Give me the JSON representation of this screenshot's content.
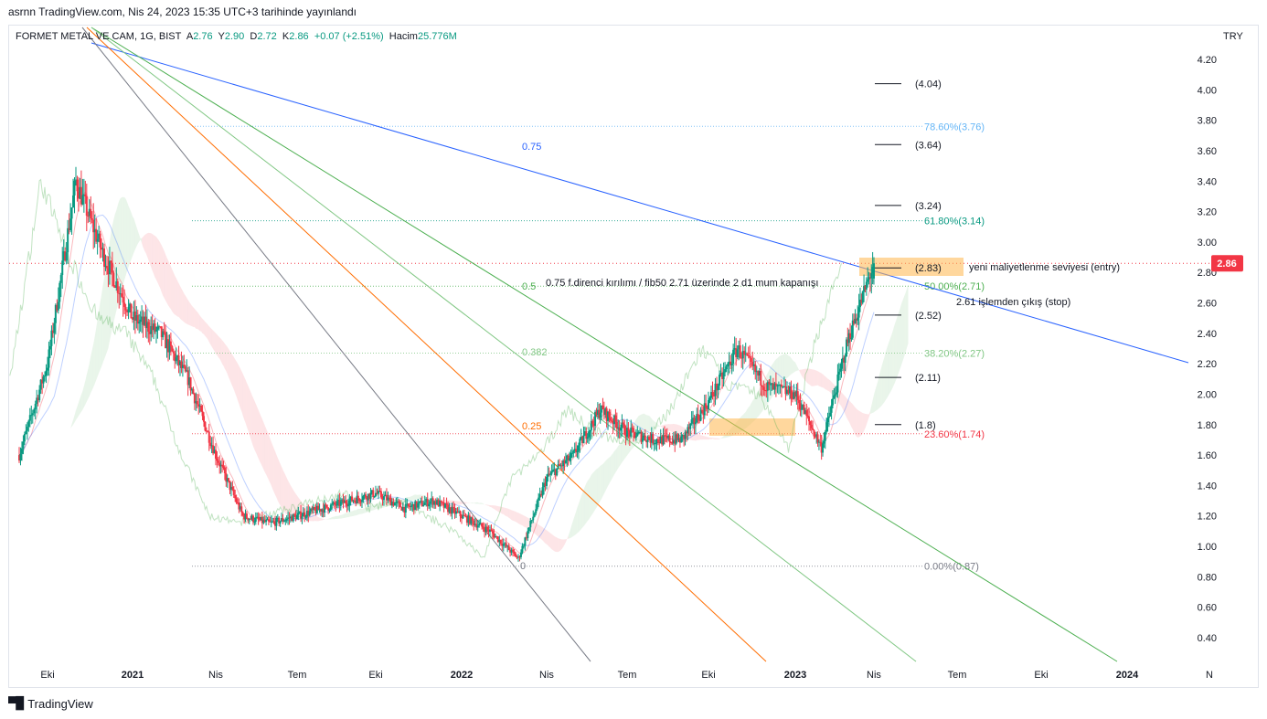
{
  "header": {
    "published": "asrnn TradingView.com, Nis 24, 2023 15:35 UTC+3 tarihinde yayınlandı"
  },
  "legend": {
    "symbol": "FORMET METAL VE CAM, 1G, BIST",
    "open_label": "A",
    "open": "2.76",
    "high_label": "Y",
    "high": "2.90",
    "low_label": "D",
    "low": "2.72",
    "close_label": "K",
    "close": "2.86",
    "change": "+0.07 (+2.51%)",
    "volume_label": "Hacim",
    "volume": "25.776M"
  },
  "currency": "TRY",
  "footer": {
    "brand": "TradingView"
  },
  "chart_data": {
    "type": "line",
    "title": "FORMET METAL VE CAM, 1G, BIST",
    "ylim": [
      0.3,
      4.3
    ],
    "y_ticks": [
      "4.20",
      "4.00",
      "3.80",
      "3.60",
      "3.40",
      "3.20",
      "3.00",
      "2.80",
      "2.60",
      "2.40",
      "2.20",
      "2.00",
      "1.80",
      "1.60",
      "1.40",
      "1.20",
      "1.00",
      "0.80",
      "0.60",
      "0.40"
    ],
    "x_ticks": [
      "Eki",
      "2021",
      "Nis",
      "Tem",
      "Eki",
      "2022",
      "Nis",
      "Tem",
      "Eki",
      "2023",
      "Nis",
      "Tem",
      "Eki",
      "2024",
      "N"
    ],
    "last_price": "2.86",
    "price_colors": {
      "up": "#089981",
      "down": "#f23645"
    },
    "series": [
      {
        "name": "",
        "x": [
          "2020-09",
          "2020-10",
          "2020-11",
          "2020-12",
          "2021-01",
          "2021-02",
          "2021-03",
          "2021-04",
          "2021-05",
          "2021-06",
          "2021-07",
          "2021-08",
          "2021-09",
          "2021-10",
          "2021-11",
          "2021-12",
          "2022-01",
          "2022-02",
          "2022-03",
          "2022-04",
          "2022-05",
          "2022-06",
          "2022-07",
          "2022-08",
          "2022-09",
          "2022-10",
          "2022-11",
          "2022-12",
          "2023-01",
          "2023-02",
          "2023-03",
          "2023-04"
        ],
        "values": [
          1.6,
          2.2,
          3.4,
          2.9,
          2.5,
          2.4,
          2.1,
          1.6,
          1.2,
          1.15,
          1.2,
          1.25,
          1.3,
          1.35,
          1.25,
          1.3,
          1.2,
          1.1,
          0.92,
          1.45,
          1.6,
          1.9,
          1.75,
          1.7,
          1.7,
          1.95,
          2.3,
          2.05,
          2.0,
          1.65,
          2.35,
          2.86
        ]
      }
    ],
    "fibonacci_retracement": [
      {
        "label": "78.60%(3.76)",
        "price": 3.76,
        "color": "#64b5f6"
      },
      {
        "label": "61.80%(3.14)",
        "price": 3.14,
        "color": "#089981"
      },
      {
        "label": "50.00%(2.71)",
        "price": 2.71,
        "color": "#4caf50"
      },
      {
        "label": "38.20%(2.27)",
        "price": 2.27,
        "color": "#81c784"
      },
      {
        "label": "23.60%(1.74)",
        "price": 1.74,
        "color": "#f23645"
      },
      {
        "label": "0.00%(0.87)",
        "price": 0.87,
        "color": "#787b86"
      }
    ],
    "fan_labels": [
      {
        "label": "0.75",
        "color": "#2962ff"
      },
      {
        "label": "0.5",
        "color": "#4caf50"
      },
      {
        "label": "0.382",
        "color": "#81c784"
      },
      {
        "label": "0.25",
        "color": "#ff6d00"
      },
      {
        "label": "0",
        "color": "#787b86"
      }
    ],
    "target_levels": [
      "(4.04)",
      "(3.64)",
      "(3.24)",
      "(2.83)",
      "(2.52)",
      "(2.11)",
      "(1.8)"
    ],
    "annotations": [
      "yeni maliyetlenme seviyesi (entry)",
      "0.75 f.direnci kırılımı / fib50 2.71 üzerinde 2 d1 mum kapanışı",
      "2.61 işlemden çıkış (stop)"
    ]
  }
}
